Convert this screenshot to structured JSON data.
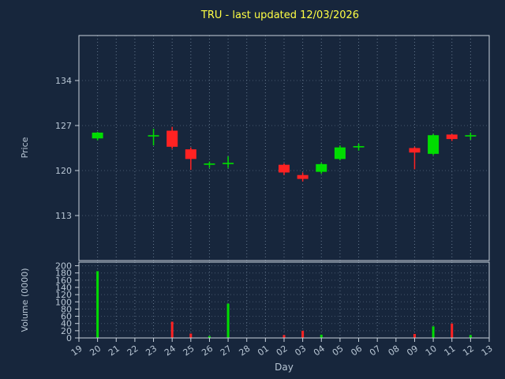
{
  "chart_data": {
    "type": "candlestick",
    "title": "TRU - last updated 12/03/2026",
    "xlabel": "Day",
    "price_axis": {
      "label": "Price",
      "ticks": [
        113,
        120,
        127,
        134
      ],
      "range": [
        106,
        141
      ]
    },
    "volume_axis": {
      "label": "Volume (0000)",
      "ticks": [
        0,
        20,
        40,
        60,
        80,
        100,
        120,
        140,
        160,
        180,
        200
      ],
      "range": [
        0,
        210
      ]
    },
    "categories": [
      "19",
      "20",
      "21",
      "22",
      "23",
      "24",
      "25",
      "26",
      "27",
      "28",
      "01",
      "02",
      "03",
      "04",
      "05",
      "06",
      "07",
      "08",
      "09",
      "10",
      "11",
      "12",
      "13"
    ],
    "candles": [
      {
        "day": "20",
        "open": 125.0,
        "high": 126.0,
        "low": 124.7,
        "close": 125.9
      },
      {
        "day": "23",
        "open": 125.3,
        "high": 126.5,
        "low": 123.9,
        "close": 125.5
      },
      {
        "day": "24",
        "open": 126.2,
        "high": 126.8,
        "low": 123.4,
        "close": 123.7
      },
      {
        "day": "25",
        "open": 123.3,
        "high": 123.6,
        "low": 120.1,
        "close": 121.8
      },
      {
        "day": "26",
        "open": 120.9,
        "high": 121.4,
        "low": 120.4,
        "close": 121.1
      },
      {
        "day": "27",
        "open": 121.0,
        "high": 122.2,
        "low": 120.4,
        "close": 121.2
      },
      {
        "day": "02",
        "open": 120.9,
        "high": 121.1,
        "low": 119.3,
        "close": 119.7
      },
      {
        "day": "03",
        "open": 119.3,
        "high": 119.7,
        "low": 118.3,
        "close": 118.7
      },
      {
        "day": "04",
        "open": 119.8,
        "high": 121.2,
        "low": 119.5,
        "close": 121.0
      },
      {
        "day": "05",
        "open": 121.8,
        "high": 123.9,
        "low": 121.6,
        "close": 123.6
      },
      {
        "day": "06",
        "open": 123.6,
        "high": 124.2,
        "low": 123.1,
        "close": 123.8
      },
      {
        "day": "09",
        "open": 123.5,
        "high": 123.7,
        "low": 120.2,
        "close": 122.8
      },
      {
        "day": "10",
        "open": 122.6,
        "high": 125.7,
        "low": 122.4,
        "close": 125.5
      },
      {
        "day": "11",
        "open": 125.6,
        "high": 125.7,
        "low": 124.6,
        "close": 124.9
      },
      {
        "day": "12",
        "open": 125.3,
        "high": 125.9,
        "low": 124.8,
        "close": 125.5
      }
    ],
    "volumes": [
      {
        "day": "20",
        "value": 185
      },
      {
        "day": "24",
        "value": 45
      },
      {
        "day": "25",
        "value": 12
      },
      {
        "day": "26",
        "value": 5
      },
      {
        "day": "27",
        "value": 95
      },
      {
        "day": "02",
        "value": 8
      },
      {
        "day": "03",
        "value": 20
      },
      {
        "day": "04",
        "value": 9
      },
      {
        "day": "09",
        "value": 11
      },
      {
        "day": "10",
        "value": 32
      },
      {
        "day": "11",
        "value": 40
      },
      {
        "day": "12",
        "value": 8
      }
    ],
    "colors": {
      "up": "#00dd00",
      "down": "#ff2222",
      "title": "#ffff44",
      "tick_label": "#b8c6d4",
      "grid": "#7e92a8",
      "background": "#17263c",
      "spine": "#c8d2dc"
    },
    "legend": "off",
    "grid": "on"
  }
}
